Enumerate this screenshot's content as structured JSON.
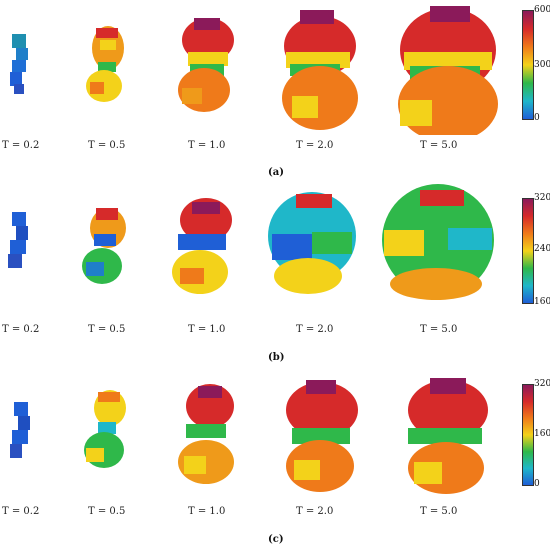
{
  "panels": [
    {
      "id": "a",
      "caption": "(a)",
      "colorbar": {
        "ticks": [
          "600",
          "300",
          "0"
        ]
      },
      "labels": [
        "T = 0.2",
        "T = 0.5",
        "T = 1.0",
        "T = 2.0",
        "T = 5.0"
      ]
    },
    {
      "id": "b",
      "caption": "(b)",
      "colorbar": {
        "ticks": [
          "320",
          "240",
          "160"
        ]
      },
      "labels": [
        "T = 0.2",
        "T = 0.5",
        "T = 1.0",
        "T = 2.0",
        "T = 5.0"
      ]
    },
    {
      "id": "c",
      "caption": "(c)",
      "colorbar": {
        "ticks": [
          "320",
          "160",
          "0"
        ]
      },
      "labels": [
        "T = 0.2",
        "T = 0.5",
        "T = 1.0",
        "T = 2.0",
        "T = 5.0"
      ]
    }
  ],
  "colormap": [
    "#8b1a5a",
    "#d62a2a",
    "#ef7a1a",
    "#f3d21a",
    "#2fb84a",
    "#1fb7c9",
    "#1f5fd6"
  ]
}
